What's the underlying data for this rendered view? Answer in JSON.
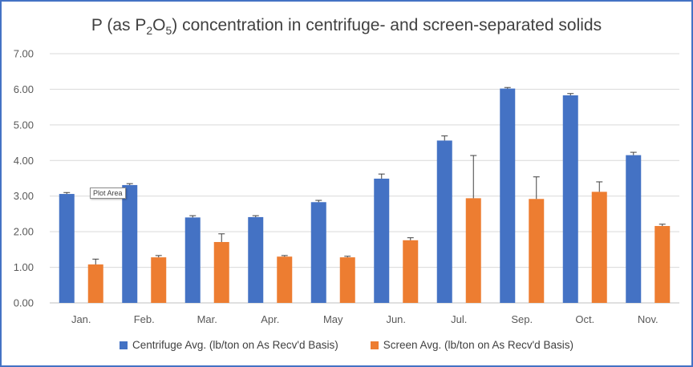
{
  "colors": {
    "centrifuge": "#4472c4",
    "screen": "#ed7d31",
    "grid": "#d9d9d9",
    "error_bar": "#404040"
  },
  "tooltip": "Plot Area",
  "chart_data": {
    "type": "bar",
    "title_prefix": "P (as P",
    "title_sub1": "2",
    "title_mid": "O",
    "title_sub2": "5",
    "title_suffix": ") concentration in centrifuge- and screen-separated solids",
    "categories": [
      "Jan.",
      "Feb.",
      "Mar.",
      "Apr.",
      "May",
      "Jun.",
      "Jul.",
      "Sep.",
      "Oct.",
      "Nov."
    ],
    "ylim": [
      0,
      7
    ],
    "yticks": [
      "0.00",
      "1.00",
      "2.00",
      "3.00",
      "4.00",
      "5.00",
      "6.00",
      "7.00"
    ],
    "grid": true,
    "legend_position": "bottom",
    "series": [
      {
        "name": "Centrifuge Avg. (lb/ton on As Recv'd Basis)",
        "values": [
          3.06,
          3.31,
          2.4,
          2.41,
          2.83,
          3.49,
          4.56,
          6.02,
          5.83,
          4.15
        ],
        "errors": [
          0.04,
          0.04,
          0.05,
          0.04,
          0.05,
          0.13,
          0.13,
          0.03,
          0.05,
          0.08
        ]
      },
      {
        "name": "Screen Avg. (lb/ton on As Recv'd Basis)",
        "values": [
          1.08,
          1.28,
          1.71,
          1.3,
          1.28,
          1.76,
          2.94,
          2.92,
          3.12,
          2.16
        ],
        "errors": [
          0.15,
          0.05,
          0.23,
          0.03,
          0.03,
          0.07,
          1.2,
          0.62,
          0.28,
          0.05
        ]
      }
    ]
  }
}
